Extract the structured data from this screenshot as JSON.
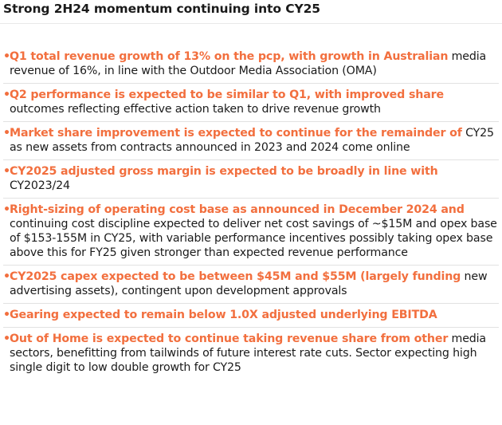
{
  "slide": {
    "title": "Strong 2H24 momentum continuing into CY25",
    "accent_color": "#f26f3e",
    "text_color": "#1a1a1a"
  },
  "bullets": [
    {
      "lead": "Q1 total revenue growth of 13% on the pcp, with growth in Australian",
      "rest": " media revenue of 16%, in line with the Outdoor Media Association (OMA)"
    },
    {
      "lead": "Q2 performance is expected to be similar to Q1, with improved share",
      "rest": " outcomes reflecting effective action taken to drive revenue growth"
    },
    {
      "lead": "Market share improvement is expected to continue for the remainder of",
      "rest": " CY25 as new assets from contracts announced in 2023 and 2024 come online"
    },
    {
      "lead": "CY2025 adjusted gross margin is expected to be broadly in line with",
      "rest": " CY2023/24"
    },
    {
      "lead": "Right-sizing of operating cost base as announced in December 2024 and",
      "rest": " continuing cost discipline expected to deliver net cost savings of ~$15M and opex base of $153-155M in CY25, with variable performance incentives possibly taking opex base above this for FY25 given stronger than expected revenue performance"
    },
    {
      "lead": "CY2025 capex expected to be between $45M and $55M (largely funding",
      "rest": " new advertising assets), contingent upon development approvals"
    },
    {
      "lead": "Gearing expected to remain below 1.0X adjusted underlying EBITDA",
      "rest": ""
    },
    {
      "lead": "Out of Home is expected to continue taking revenue share from other",
      "rest": " media sectors, benefitting from tailwinds of future interest rate cuts. Sector expecting high single digit to low double growth for CY25"
    }
  ]
}
